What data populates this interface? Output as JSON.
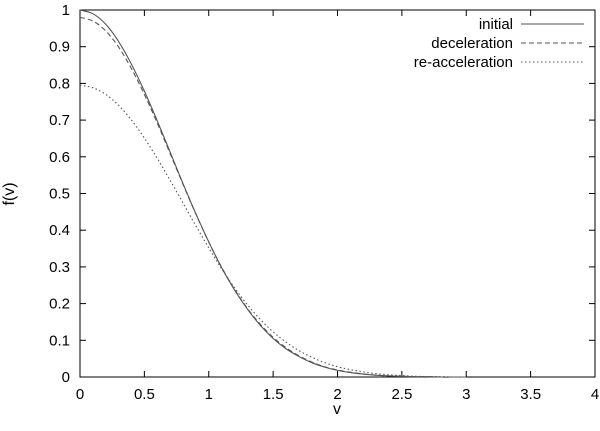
{
  "chart_data": {
    "type": "line",
    "title": "",
    "xlabel": "v",
    "ylabel": "f(v)",
    "xlim": [
      0,
      4
    ],
    "ylim": [
      0,
      1
    ],
    "grid": false,
    "legend_position": "top-right",
    "x_ticks": [
      "0",
      "0.5",
      "1",
      "1.5",
      "2",
      "2.5",
      "3",
      "3.5",
      "4"
    ],
    "y_ticks": [
      "0",
      "0.1",
      "0.2",
      "0.3",
      "0.4",
      "0.5",
      "0.6",
      "0.7",
      "0.8",
      "0.9",
      "1"
    ],
    "x": [
      0,
      0.1,
      0.2,
      0.3,
      0.4,
      0.5,
      0.6,
      0.7,
      0.8,
      0.9,
      1.0,
      1.1,
      1.2,
      1.3,
      1.4,
      1.5,
      1.6,
      1.7,
      1.8,
      1.9,
      2.0,
      2.1,
      2.2,
      2.3,
      2.4,
      2.5,
      2.6,
      2.7,
      2.8,
      2.9,
      3.0
    ],
    "series": [
      {
        "name": "initial",
        "style": "solid",
        "color": "#555555",
        "values": [
          1.0,
          0.99,
          0.961,
          0.914,
          0.852,
          0.779,
          0.698,
          0.613,
          0.527,
          0.445,
          0.368,
          0.298,
          0.237,
          0.185,
          0.141,
          0.105,
          0.077,
          0.056,
          0.039,
          0.027,
          0.018,
          0.012,
          0.008,
          0.005,
          0.003,
          0.002,
          0.001,
          0.001,
          0.0,
          0.0,
          0.0
        ]
      },
      {
        "name": "deceleration",
        "style": "dashed",
        "color": "#555555",
        "values": [
          0.98,
          0.97,
          0.943,
          0.899,
          0.84,
          0.77,
          0.692,
          0.609,
          0.525,
          0.444,
          0.368,
          0.299,
          0.239,
          0.187,
          0.144,
          0.108,
          0.08,
          0.058,
          0.041,
          0.028,
          0.019,
          0.013,
          0.008,
          0.005,
          0.003,
          0.002,
          0.001,
          0.001,
          0.0,
          0.0,
          0.0
        ]
      },
      {
        "name": "re-acceleration",
        "style": "dotted",
        "color": "#555555",
        "values": [
          0.795,
          0.788,
          0.77,
          0.74,
          0.7,
          0.651,
          0.596,
          0.536,
          0.474,
          0.412,
          0.352,
          0.295,
          0.243,
          0.197,
          0.157,
          0.123,
          0.095,
          0.072,
          0.054,
          0.039,
          0.028,
          0.02,
          0.014,
          0.009,
          0.006,
          0.004,
          0.002,
          0.001,
          0.001,
          0.0,
          0.0
        ]
      }
    ]
  }
}
